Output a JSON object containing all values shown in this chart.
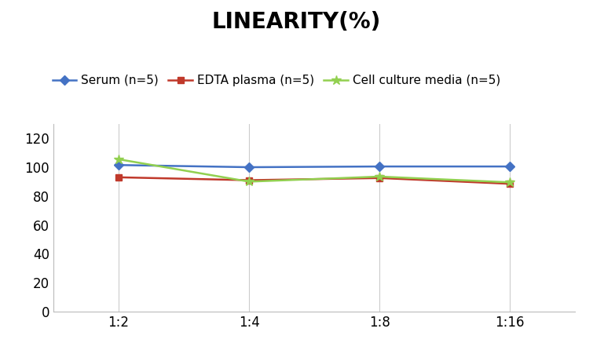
{
  "title": "LINEARITY(%)",
  "x_labels": [
    "1:2",
    "1:4",
    "1:8",
    "1:16"
  ],
  "x_values": [
    1,
    2,
    3,
    4
  ],
  "series": [
    {
      "label": "Serum (n=5)",
      "values": [
        101.5,
        100.0,
        100.5,
        100.5
      ],
      "color": "#4472C4",
      "marker": "D",
      "markersize": 6,
      "linewidth": 1.8
    },
    {
      "label": "EDTA plasma (n=5)",
      "values": [
        93.0,
        91.0,
        92.5,
        88.5
      ],
      "color": "#C0392B",
      "marker": "s",
      "markersize": 6,
      "linewidth": 1.8
    },
    {
      "label": "Cell culture media (n=5)",
      "values": [
        105.5,
        90.0,
        93.5,
        89.5
      ],
      "color": "#92D050",
      "marker": "*",
      "markersize": 9,
      "linewidth": 1.8
    }
  ],
  "ylim": [
    0,
    130
  ],
  "yticks": [
    0,
    20,
    40,
    60,
    80,
    100,
    120
  ],
  "title_fontsize": 20,
  "legend_fontsize": 11,
  "tick_fontsize": 12,
  "background_color": "#ffffff",
  "grid_color": "#cccccc"
}
